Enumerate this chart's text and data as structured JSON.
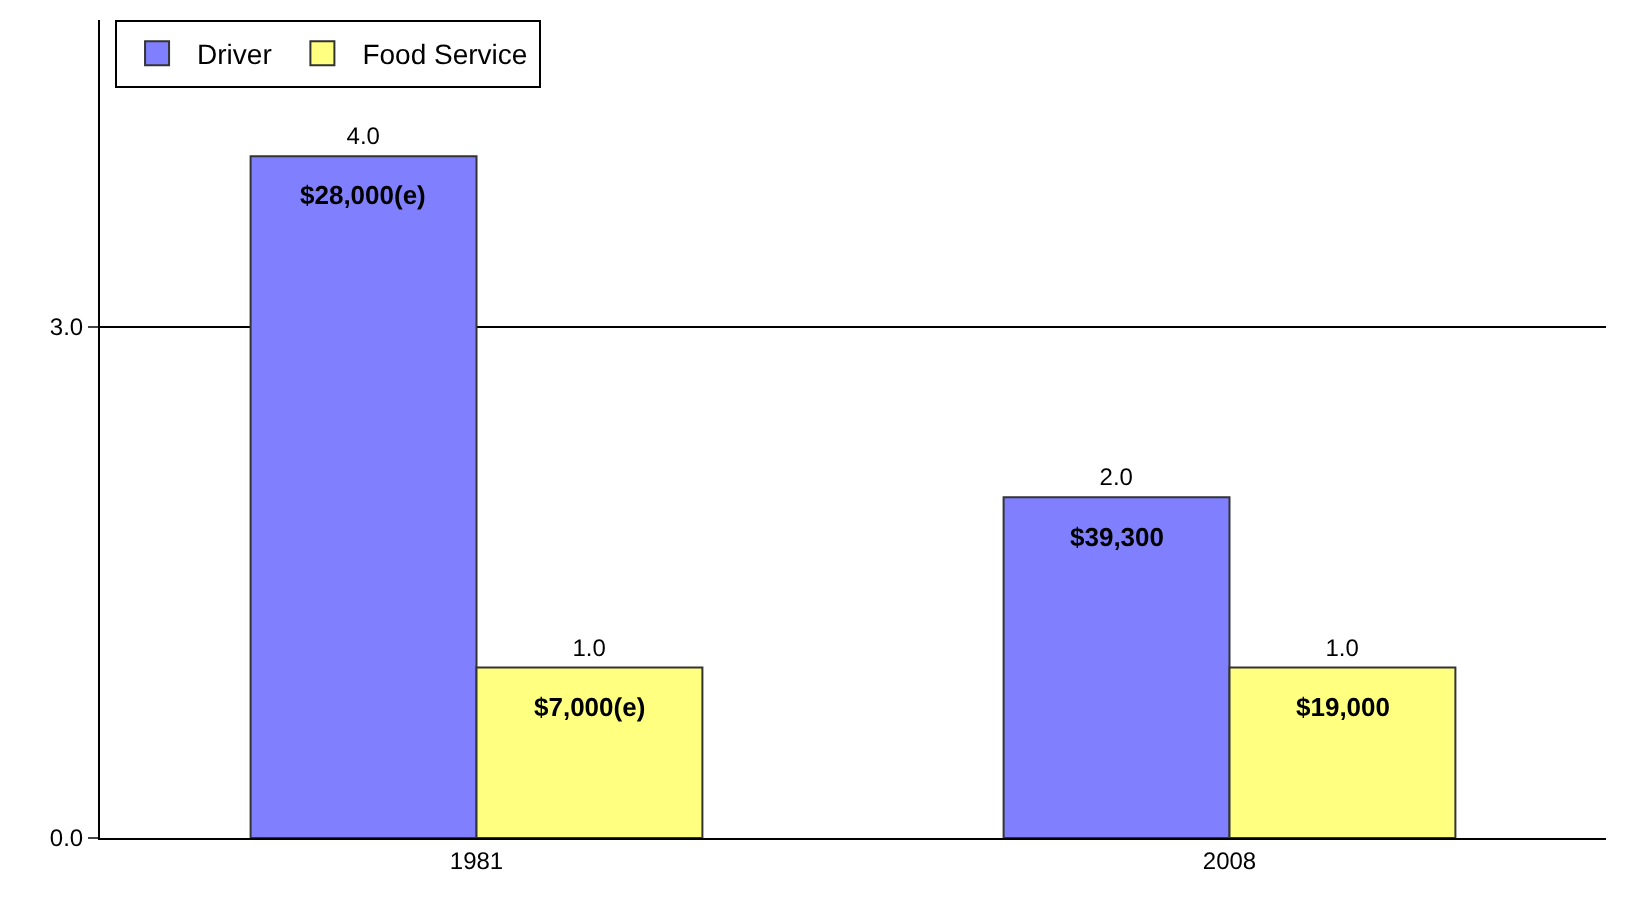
{
  "chart_data": {
    "type": "bar",
    "categories": [
      "1981",
      "2008"
    ],
    "series": [
      {
        "name": "Driver",
        "color": "#8080ff",
        "values": [
          4.0,
          2.0
        ],
        "value_labels": [
          "4.0",
          "2.0"
        ]
      },
      {
        "name": "Food Service",
        "color": "#ffff80",
        "values": [
          1.0,
          1.0
        ],
        "value_labels": [
          "1.0",
          "1.0"
        ]
      }
    ],
    "annotations": [
      {
        "text": "$28,000(e)",
        "x": "1981",
        "y": 4.0
      },
      {
        "text": "$39,300",
        "x": "2008",
        "y": 2.0
      },
      {
        "text": "$7,000(e)",
        "x": "1981",
        "y": 1.0
      },
      {
        "text": "$19,000",
        "x": "2008",
        "y": 1.0
      }
    ],
    "ylim": [
      0,
      4.8
    ],
    "yticks": [
      {
        "value": 0,
        "label": "0.0"
      },
      {
        "value": 3,
        "label": "3.0"
      }
    ],
    "grid": "y",
    "legend": "top left"
  }
}
